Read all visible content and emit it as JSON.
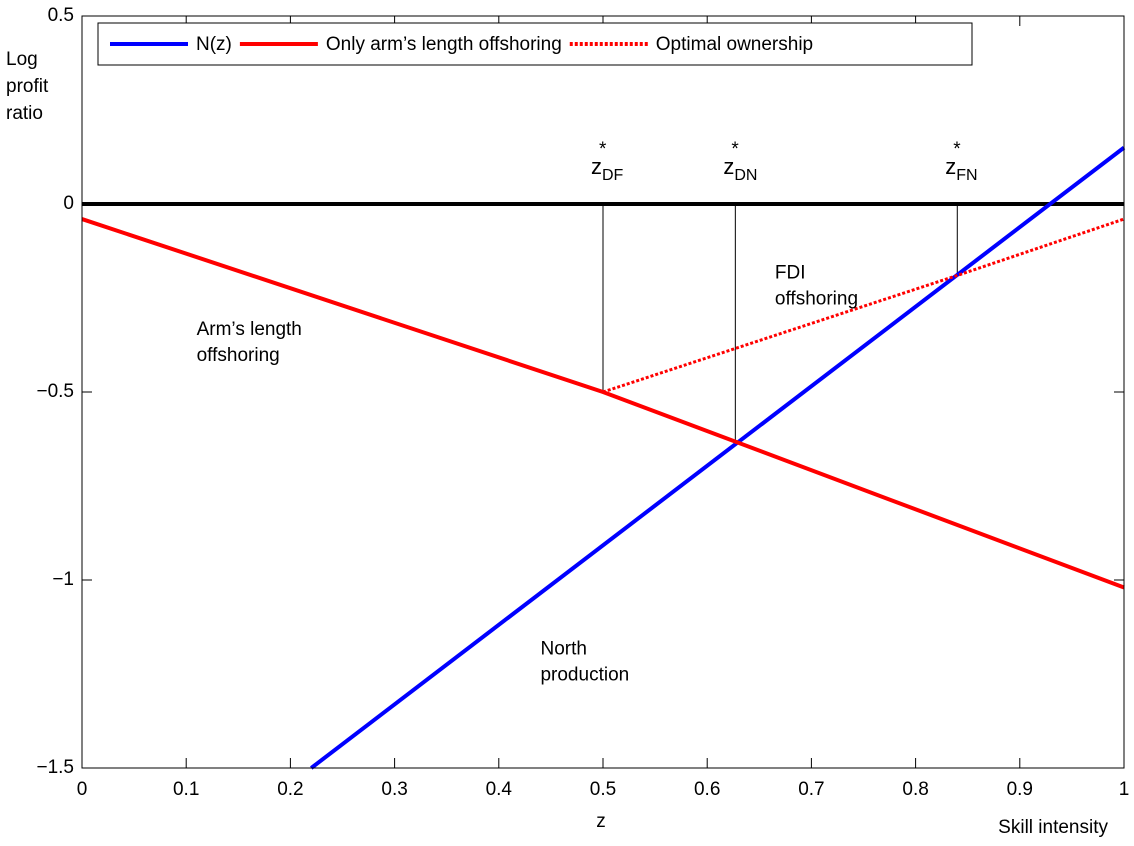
{
  "chart_data": {
    "type": "line",
    "y_label": [
      "Log",
      "profit",
      "ratio"
    ],
    "x_label": "z",
    "x_title": "Skill intensity",
    "xlim": [
      0,
      1
    ],
    "ylim": [
      -1.5,
      0.5
    ],
    "xticks": [
      0,
      0.1,
      0.2,
      0.3,
      0.4,
      0.5,
      0.6,
      0.7,
      0.8,
      0.9,
      1
    ],
    "yticks": [
      0.5,
      0,
      {
        "value": -0.5,
        "label": "−0.5"
      },
      {
        "value": -1,
        "label": "−1"
      },
      {
        "value": -1.5,
        "label": "−1.5"
      }
    ],
    "reference_line": 0,
    "series": [
      {
        "name": "N(z)",
        "color": "#0000ff",
        "style": "solid",
        "x": [
          0.22,
          1
        ],
        "values": [
          -1.5,
          0.15
        ]
      },
      {
        "name": "Only arm’s length offshoring",
        "color": "#ff0000",
        "style": "solid",
        "x": [
          0,
          0.5,
          1
        ],
        "values": [
          -0.04,
          -0.5,
          -1.02
        ]
      },
      {
        "name": "Optimal ownership",
        "color": "#ff0000",
        "style": "dotted",
        "x": [
          0.5,
          0.84,
          1
        ],
        "values": [
          -0.5,
          -0.19,
          -0.04
        ]
      }
    ],
    "thresholds": [
      {
        "text": "z",
        "sup": "*",
        "sub": "DF",
        "x": 0.5,
        "y": -0.5
      },
      {
        "text": "z",
        "sup": "*",
        "sub": "DN",
        "x": 0.627,
        "y": -0.64
      },
      {
        "text": "z",
        "sup": "*",
        "sub": "FN",
        "x": 0.84,
        "y": -0.19
      }
    ],
    "annotations": [
      {
        "lines": [
          "Arm’s length",
          "offshoring"
        ],
        "x": 0.11,
        "y": -0.37
      },
      {
        "lines": [
          "FDI",
          "offshoring"
        ],
        "x": 0.665,
        "y": -0.22
      },
      {
        "lines": [
          "North",
          "production"
        ],
        "x": 0.44,
        "y": -1.22
      }
    ],
    "legend": "top"
  }
}
